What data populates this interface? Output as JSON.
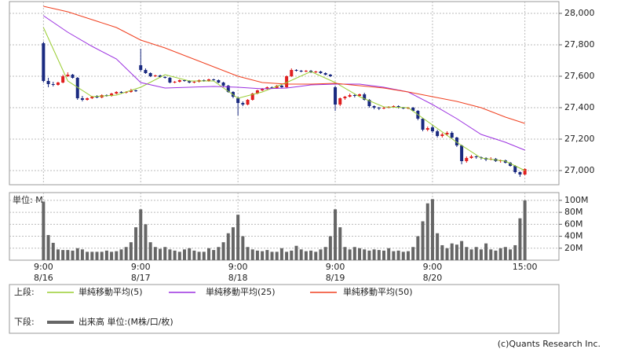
{
  "chart_data": [
    {
      "type": "candlestick",
      "legend_prefix": "上段:",
      "up_color": "#e02020",
      "down_color": "#1a2a80",
      "ylim": [
        26910,
        28075
      ],
      "yticks": [
        {
          "value": 27000,
          "label": "27,000"
        },
        {
          "value": 27200,
          "label": "27,200"
        },
        {
          "value": 27400,
          "label": "27,400"
        },
        {
          "value": 27600,
          "label": "27,600"
        },
        {
          "value": 27800,
          "label": "27,800"
        },
        {
          "value": 28000,
          "label": "28,000"
        }
      ],
      "grid": true,
      "open": [
        27810,
        27570,
        27550,
        27545,
        27560,
        27600,
        27610,
        27590,
        27460,
        27450,
        27460,
        27470,
        27465,
        27480,
        27475,
        27490,
        27500,
        27495,
        27500,
        27510,
        27670,
        27640,
        27620,
        27600,
        27605,
        27595,
        27590,
        27560,
        27565,
        27575,
        27570,
        27560,
        27565,
        27575,
        27570,
        27580,
        27575,
        27560,
        27540,
        27500,
        27460,
        27430,
        27420,
        27450,
        27490,
        27510,
        27520,
        27530,
        27525,
        27540,
        27530,
        27600,
        27640,
        27635,
        27630,
        27635,
        27625,
        27630,
        27620,
        27610,
        27530,
        27420,
        27460,
        27470,
        27480,
        27475,
        27485,
        27450,
        27410,
        27400,
        27395,
        27400,
        27405,
        27410,
        27400,
        27395,
        27400,
        27380,
        27330,
        27260,
        27275,
        27250,
        27220,
        27230,
        27240,
        27210,
        27160,
        27060,
        27080,
        27090,
        27085,
        27080,
        27070,
        27075,
        27060,
        27065,
        27050,
        27030,
        26990,
        26975
      ],
      "high": [
        27820,
        27590,
        27565,
        27565,
        27610,
        27625,
        27615,
        27595,
        27475,
        27465,
        27475,
        27480,
        27485,
        27485,
        27495,
        27505,
        27505,
        27505,
        27520,
        27515,
        27775,
        27650,
        27625,
        27610,
        27610,
        27600,
        27595,
        27570,
        27580,
        27580,
        27575,
        27570,
        27580,
        27580,
        27585,
        27585,
        27580,
        27565,
        27545,
        27505,
        27470,
        27440,
        27455,
        27495,
        27515,
        27525,
        27535,
        27535,
        27545,
        27545,
        27605,
        27650,
        27645,
        27640,
        27640,
        27640,
        27635,
        27635,
        27625,
        27615,
        27540,
        27465,
        27475,
        27490,
        27490,
        27490,
        27495,
        27455,
        27415,
        27405,
        27405,
        27410,
        27415,
        27415,
        27405,
        27405,
        27405,
        27385,
        27335,
        27280,
        27290,
        27260,
        27240,
        27250,
        27250,
        27215,
        27165,
        27090,
        27100,
        27095,
        27090,
        27085,
        27085,
        27080,
        27070,
        27070,
        27055,
        27035,
        26995,
        27015
      ],
      "low": [
        27560,
        27530,
        27535,
        27540,
        27555,
        27595,
        27585,
        27450,
        27440,
        27445,
        27455,
        27460,
        27460,
        27470,
        27470,
        27485,
        27490,
        27490,
        27495,
        27500,
        27630,
        27615,
        27595,
        27595,
        27590,
        27585,
        27555,
        27555,
        27560,
        27565,
        27555,
        27555,
        27560,
        27565,
        27565,
        27570,
        27555,
        27535,
        27495,
        27460,
        27350,
        27410,
        27415,
        27445,
        27485,
        27505,
        27515,
        27520,
        27520,
        27525,
        27525,
        27595,
        27630,
        27625,
        27625,
        27620,
        27620,
        27615,
        27605,
        27595,
        27380,
        27410,
        27450,
        27465,
        27465,
        27470,
        27445,
        27400,
        27390,
        27385,
        27390,
        27395,
        27400,
        27395,
        27390,
        27390,
        27375,
        27320,
        27250,
        27250,
        27240,
        27210,
        27210,
        27220,
        27200,
        27150,
        27040,
        27050,
        27075,
        27075,
        27070,
        27060,
        27065,
        27055,
        27050,
        27045,
        27025,
        26980,
        26960,
        26970
      ],
      "close": [
        27570,
        27550,
        27545,
        27560,
        27600,
        27610,
        27590,
        27460,
        27450,
        27460,
        27470,
        27465,
        27480,
        27475,
        27490,
        27500,
        27495,
        27500,
        27510,
        27505,
        27640,
        27620,
        27600,
        27605,
        27595,
        27590,
        27560,
        27565,
        27575,
        27570,
        27560,
        27565,
        27575,
        27570,
        27580,
        27575,
        27560,
        27540,
        27500,
        27470,
        27430,
        27420,
        27450,
        27490,
        27510,
        27520,
        27530,
        27525,
        27540,
        27530,
        27600,
        27640,
        27635,
        27630,
        27635,
        27625,
        27630,
        27620,
        27610,
        27600,
        27420,
        27460,
        27470,
        27480,
        27475,
        27485,
        27450,
        27410,
        27400,
        27395,
        27400,
        27405,
        27410,
        27400,
        27395,
        27400,
        27380,
        27330,
        27260,
        27270,
        27250,
        27220,
        27230,
        27240,
        27210,
        27160,
        27060,
        27080,
        27090,
        27085,
        27080,
        27070,
        27075,
        27060,
        27065,
        27050,
        27030,
        26990,
        26975,
        27010
      ],
      "series": [
        {
          "name": "単純移動平均(5)",
          "color": "#9acd32",
          "x": [
            0,
            5,
            10,
            15,
            20,
            25,
            30,
            35,
            40,
            45,
            50,
            55,
            60,
            65,
            70,
            75,
            80,
            85,
            90,
            95,
            99
          ],
          "values": [
            27910,
            27570,
            27470,
            27480,
            27530,
            27610,
            27570,
            27570,
            27460,
            27500,
            27560,
            27630,
            27560,
            27470,
            27405,
            27400,
            27290,
            27180,
            27080,
            27060,
            27000
          ]
        },
        {
          "name": "単純移動平均(25)",
          "color": "#9b30e0",
          "x": [
            0,
            5,
            10,
            15,
            20,
            25,
            30,
            35,
            40,
            45,
            50,
            55,
            60,
            65,
            70,
            75,
            80,
            85,
            90,
            95,
            99
          ],
          "values": [
            27985,
            27880,
            27790,
            27710,
            27560,
            27525,
            27530,
            27535,
            27530,
            27520,
            27525,
            27545,
            27550,
            27550,
            27530,
            27500,
            27420,
            27330,
            27230,
            27180,
            27130
          ]
        },
        {
          "name": "単純移動平均(50)",
          "color": "#f04020",
          "x": [
            0,
            5,
            10,
            15,
            20,
            25,
            30,
            35,
            40,
            45,
            50,
            55,
            60,
            65,
            70,
            75,
            80,
            85,
            90,
            95,
            99
          ],
          "values": [
            28045,
            28010,
            27960,
            27910,
            27830,
            27780,
            27720,
            27660,
            27600,
            27560,
            27550,
            27550,
            27555,
            27540,
            27525,
            27500,
            27470,
            27440,
            27400,
            27340,
            27300
          ]
        }
      ]
    },
    {
      "type": "bar",
      "legend_prefix": "下段:",
      "unit_label": "単位: M",
      "ylim": [
        0,
        113
      ],
      "yticks": [
        {
          "value": 20,
          "label": "20M"
        },
        {
          "value": 40,
          "label": "40M"
        },
        {
          "value": 60,
          "label": "60M"
        },
        {
          "value": 80,
          "label": "80M"
        },
        {
          "value": 100,
          "label": "100M"
        }
      ],
      "xlim": [
        -7,
        106
      ],
      "xticks": [
        {
          "value": 0,
          "label": "9:00",
          "date": "8/16"
        },
        {
          "value": 20,
          "label": "9:00",
          "date": "8/17"
        },
        {
          "value": 40,
          "label": "9:00",
          "date": "8/18"
        },
        {
          "value": 60,
          "label": "9:00",
          "date": "8/19"
        },
        {
          "value": 80,
          "label": "9:00",
          "date": "8/20"
        },
        {
          "value": 99,
          "label": "15:00"
        }
      ],
      "grid": true,
      "series": [
        {
          "name": "出来高 単位:(M株/口/枚)",
          "color": "#666666",
          "values": [
            98,
            42,
            29,
            18,
            17,
            17,
            16,
            20,
            18,
            14,
            14,
            14,
            14,
            16,
            14,
            15,
            18,
            22,
            30,
            55,
            85,
            60,
            30,
            22,
            19,
            22,
            18,
            16,
            14,
            18,
            20,
            16,
            14,
            14,
            20,
            17,
            22,
            30,
            45,
            55,
            76,
            40,
            22,
            18,
            16,
            15,
            17,
            14,
            14,
            20,
            14,
            16,
            24,
            18,
            15,
            16,
            14,
            18,
            22,
            40,
            85,
            55,
            22,
            18,
            22,
            20,
            18,
            16,
            18,
            17,
            16,
            20,
            15,
            16,
            14,
            15,
            22,
            40,
            65,
            95,
            102,
            45,
            25,
            20,
            28,
            26,
            32,
            22,
            18,
            22,
            18,
            28,
            18,
            16,
            20,
            22,
            18,
            25,
            70,
            100
          ]
        }
      ]
    }
  ],
  "footer": "(c)Quants Research Inc."
}
